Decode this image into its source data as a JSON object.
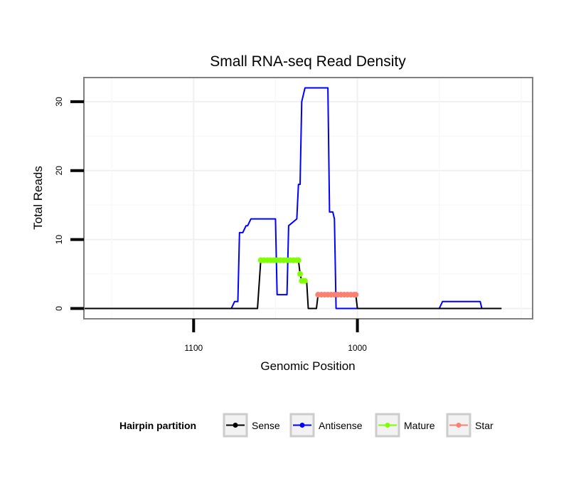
{
  "chart_data": {
    "type": "line",
    "title": "Small RNA-seq Read Density",
    "xlabel": "Genomic Position",
    "ylabel": "Total Reads",
    "x_reversed": true,
    "xlim": [
      1167,
      893
    ],
    "ylim": [
      -1.5,
      33.5
    ],
    "x_ticks": [
      1100,
      1000
    ],
    "y_ticks": [
      0,
      10,
      20,
      30
    ],
    "x_gridlines": [
      1150,
      1100,
      1050,
      1000,
      950,
      900
    ],
    "y_gridlines": [
      0,
      5,
      10,
      15,
      20,
      25,
      30
    ],
    "grid": true,
    "legend": {
      "title": "Hairpin partition",
      "position": "bottom",
      "entries": [
        {
          "name": "Sense",
          "color": "#000000"
        },
        {
          "name": "Antisense",
          "color": "#0000ff"
        },
        {
          "name": "Mature",
          "color": "#7fff00"
        },
        {
          "name": "Star",
          "color": "#fa8072"
        }
      ]
    },
    "series": [
      {
        "name": "Antisense",
        "color": "#0000ff",
        "style": "line",
        "x": [
          1077,
          1075,
          1073,
          1072,
          1070,
          1068,
          1067,
          1065,
          1064,
          1050,
          1049,
          1043,
          1042,
          1037,
          1036,
          1035,
          1034,
          1032,
          1031,
          1030,
          1029,
          1018,
          1017,
          1015,
          1014,
          1013,
          1012,
          1000,
          950,
          948,
          947,
          925,
          924,
          912
        ],
        "y": [
          0,
          1,
          1,
          11,
          11,
          12,
          12,
          13,
          13,
          13,
          2,
          2,
          12,
          13,
          18,
          18,
          30,
          32,
          32,
          32,
          32,
          32,
          14,
          14,
          13,
          0,
          0,
          0,
          0,
          1,
          1,
          1,
          0,
          0
        ]
      },
      {
        "name": "Sense",
        "color": "#000000",
        "style": "line",
        "x": [
          1167,
          1061,
          1059,
          1055,
          1050,
          1045,
          1040,
          1038,
          1036,
          1035,
          1034,
          1032,
          1031,
          1030,
          1026,
          1025,
          1024,
          1022,
          1020,
          1015,
          1010,
          1005,
          1001,
          1000,
          912
        ],
        "y": [
          0,
          0,
          7,
          7,
          7,
          7,
          7,
          7,
          7,
          5,
          4,
          4,
          4,
          0,
          0,
          0,
          2,
          2,
          2,
          2,
          2,
          2,
          2,
          0,
          0
        ]
      },
      {
        "name": "Mature",
        "color": "#7fff00",
        "style": "points",
        "x": [
          1059,
          1057,
          1055,
          1053,
          1051,
          1049,
          1047,
          1045,
          1043,
          1041,
          1039,
          1037,
          1036,
          1035,
          1034,
          1033,
          1032
        ],
        "y": [
          7,
          7,
          7,
          7,
          7,
          7,
          7,
          7,
          7,
          7,
          7,
          7,
          7,
          5,
          4,
          4,
          4
        ]
      },
      {
        "name": "Star",
        "color": "#fa8072",
        "style": "points",
        "x": [
          1024,
          1022,
          1020,
          1018,
          1016,
          1014,
          1012,
          1010,
          1008,
          1006,
          1004,
          1002,
          1001
        ],
        "y": [
          2,
          2,
          2,
          2,
          2,
          2,
          2,
          2,
          2,
          2,
          2,
          2,
          2
        ]
      }
    ]
  }
}
